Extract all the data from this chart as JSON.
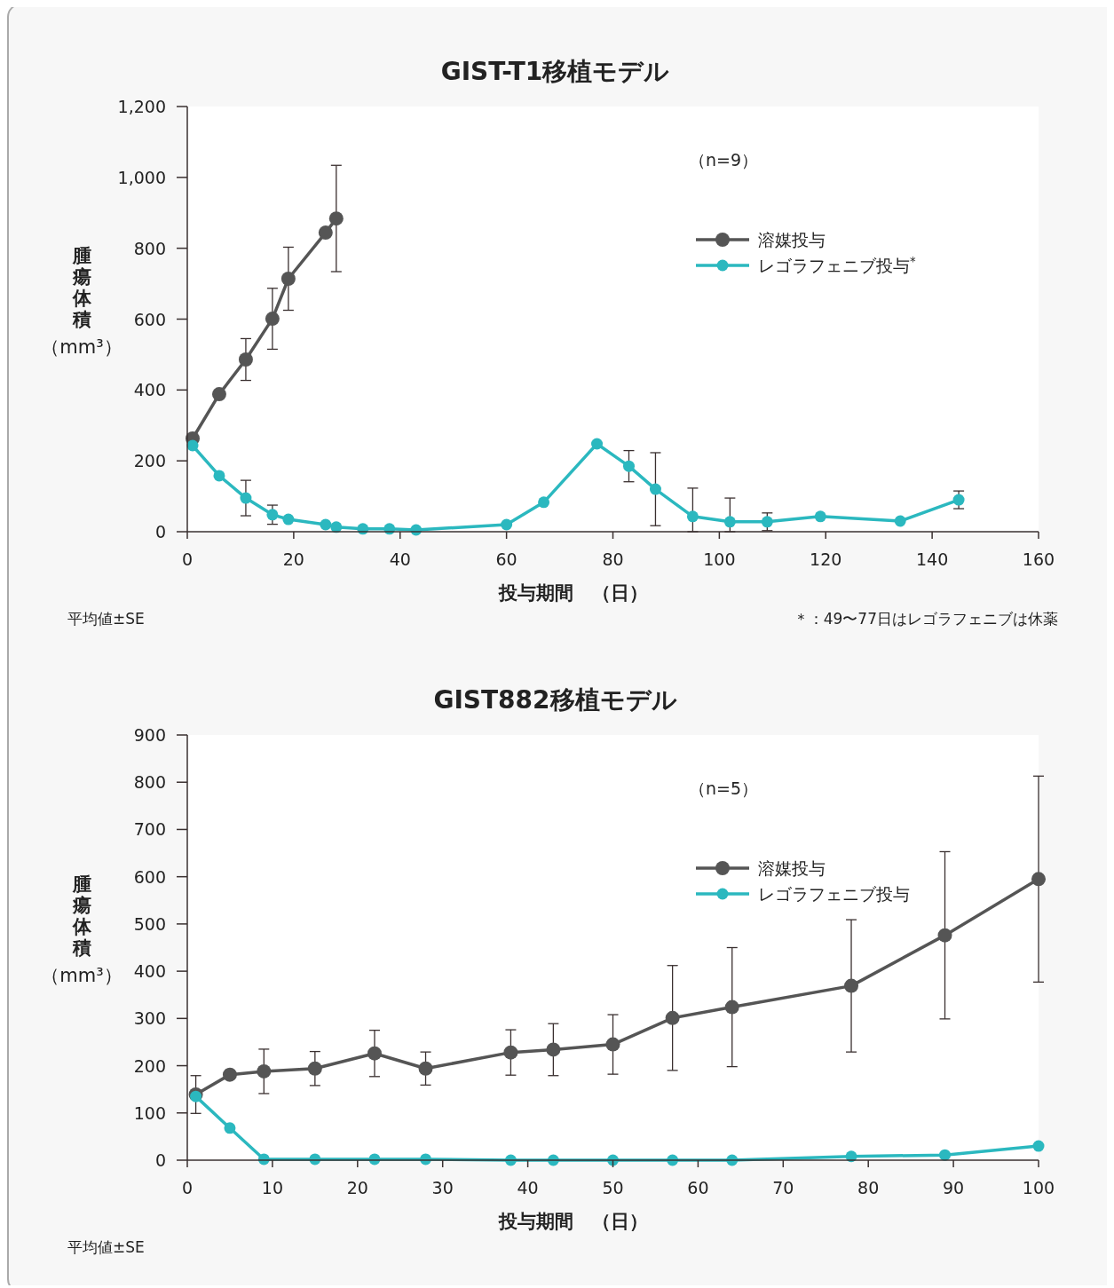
{
  "chart_data": [
    {
      "type": "line",
      "title": "GIST-T1移植モデル",
      "xlabel": "投与期間　（日）",
      "ylabel": "腫瘍体積（mm³）",
      "xlim": [
        0,
        160
      ],
      "xticks": [
        0,
        20,
        40,
        60,
        80,
        100,
        120,
        140,
        160
      ],
      "ylim": [
        0,
        1200
      ],
      "yticks": [
        0,
        200,
        400,
        600,
        800,
        {
          "value": 1000,
          "label": "1,000"
        },
        {
          "value": 1200,
          "label": "1,200"
        }
      ],
      "grid": false,
      "legend": "top right",
      "marker": "circle",
      "line_style": "solid",
      "annotations": [
        "（n=9）",
        "平均値±SE",
        "＊：49〜77日はレゴラフェニブは休薬"
      ],
      "series": [
        {
          "name": "溶媒投与",
          "color": "#555555",
          "x": [
            1,
            6,
            11,
            16,
            19,
            26,
            28
          ],
          "values": [
            263,
            388,
            486,
            601,
            714,
            844,
            884
          ],
          "errors": [
            null,
            null,
            59,
            86,
            89,
            null,
            150
          ]
        },
        {
          "name": "レゴラフェニブ投与$^{*}$",
          "color": "#2bb8bf",
          "x": [
            1,
            6,
            11,
            16,
            19,
            26,
            28,
            33,
            38,
            43,
            60,
            67,
            77,
            83,
            88,
            95,
            102,
            109,
            119,
            134,
            145
          ],
          "values": [
            243,
            158,
            95,
            48,
            35,
            20,
            13,
            8,
            8,
            5,
            20,
            83,
            248,
            185,
            120,
            43,
            28,
            28,
            43,
            30,
            90
          ],
          "errors": [
            null,
            null,
            50,
            27,
            null,
            null,
            null,
            null,
            null,
            null,
            null,
            null,
            null,
            44,
            103,
            [
              0,
              123
            ],
            [
              0,
              95
            ],
            25,
            null,
            null,
            25
          ]
        }
      ]
    },
    {
      "type": "line",
      "title": "GIST882移植モデル",
      "xlabel": "投与期間　（日）",
      "ylabel": "腫瘍体積（mm³）",
      "xlim": [
        0,
        100
      ],
      "xticks": [
        0,
        10,
        20,
        30,
        40,
        50,
        60,
        70,
        80,
        90,
        100
      ],
      "ylim": [
        0,
        900
      ],
      "yticks": [
        0,
        100,
        200,
        300,
        400,
        500,
        600,
        700,
        800,
        900
      ],
      "grid": false,
      "legend": "top right",
      "marker": "circle",
      "line_style": "solid",
      "annotations": [
        "（n=5）",
        "平均値±SE"
      ],
      "series": [
        {
          "name": "溶媒投与",
          "color": "#555555",
          "x": [
            1,
            5,
            9,
            15,
            22,
            28,
            38,
            43,
            50,
            57,
            64,
            78,
            89,
            100
          ],
          "values": [
            139,
            181,
            188,
            194,
            226,
            194,
            228,
            234,
            245,
            301,
            324,
            369,
            476,
            595
          ],
          "errors": [
            40,
            null,
            47,
            36,
            49,
            35,
            48,
            55,
            63,
            111,
            126,
            140,
            177,
            218
          ]
        },
        {
          "name": "レゴラフェニブ投与",
          "color": "#2bb8bf",
          "x": [
            1,
            5,
            9,
            15,
            22,
            28,
            38,
            43,
            50,
            57,
            64,
            78,
            89,
            100
          ],
          "values": [
            135,
            68,
            2,
            2,
            2,
            2,
            0,
            0,
            0,
            0,
            0,
            8,
            11,
            30
          ]
        }
      ]
    }
  ]
}
